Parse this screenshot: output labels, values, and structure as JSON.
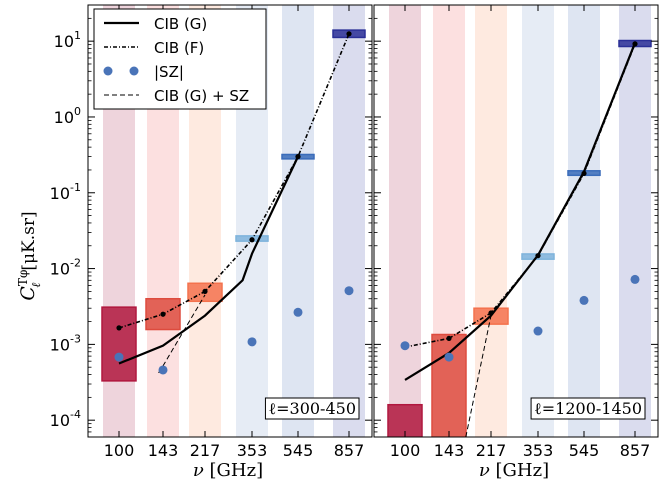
{
  "chart_data": {
    "type": "scatter",
    "ylabel_math": "C",
    "ylabel_sub": "ℓ",
    "ylabel_sup": "Tφ",
    "ylabel_unit": "[μK.sr]",
    "xlabel_var": "ν",
    "xlabel_unit": "[GHz]",
    "yscale": "log",
    "ylim": [
      6e-05,
      30
    ],
    "frequencies": [
      "100",
      "143",
      "217",
      "353",
      "545",
      "857"
    ],
    "band_colors": [
      "#e8c6d0",
      "#fbd6d6",
      "#fde3d6",
      "#dde6f2",
      "#d3dcee",
      "#cdd0e8"
    ],
    "box_colors": [
      "#b0173e",
      "#dd4b3e",
      "#f4724d",
      "#7fb4dc",
      "#3a6cba",
      "#2a2f96"
    ],
    "ytick_labels": [
      {
        "m": "10",
        "e": "-4"
      },
      {
        "m": "10",
        "e": "-3"
      },
      {
        "m": "10",
        "e": "-2"
      },
      {
        "m": "10",
        "e": "-1"
      },
      {
        "m": "10",
        "e": "0"
      },
      {
        "m": "10",
        "e": "1"
      }
    ],
    "legend": {
      "entries": [
        {
          "label": "CIB (G)",
          "style": "solid"
        },
        {
          "label": "CIB (F)",
          "style": "dashdot"
        },
        {
          "label": "|SZ|",
          "style": "dots"
        },
        {
          "label": "CIB (G) + SZ",
          "style": "dashed"
        }
      ],
      "position": "top-left"
    },
    "panels": [
      {
        "annotation": "ℓ=300-450",
        "boxes": [
          {
            "freq": "100",
            "low": 0.00033,
            "high": 0.0031
          },
          {
            "freq": "143",
            "low": 0.00157,
            "high": 0.004
          },
          {
            "freq": "217",
            "low": 0.0037,
            "high": 0.0064
          },
          {
            "freq": "353",
            "low": 0.023,
            "high": 0.027
          },
          {
            "freq": "545",
            "low": 0.28,
            "high": 0.32
          },
          {
            "freq": "857",
            "low": 11.2,
            "high": 14.0
          }
        ],
        "cib_g_dense": [
          {
            "freq": 0,
            "y": 0.00056
          },
          {
            "freq": 1,
            "y": 0.00096
          },
          {
            "freq": 2,
            "y": 0.0024
          },
          {
            "freq": 2.8,
            "y": 0.007
          },
          {
            "freq": 3,
            "y": 0.0157
          },
          {
            "freq": 4,
            "y": 0.3
          },
          {
            "freq": 5.02,
            "y": 16.0
          }
        ],
        "cib_f": [
          {
            "freq": "100",
            "y": 0.00165
          },
          {
            "freq": "143",
            "y": 0.0025
          },
          {
            "freq": "217",
            "y": 0.005
          },
          {
            "freq": "353",
            "y": 0.024
          },
          {
            "freq": "545",
            "y": 0.3
          },
          {
            "freq": "857",
            "y": 12.5
          }
        ],
        "sz": [
          {
            "freq": "100",
            "y": 0.00068
          },
          {
            "freq": "143",
            "y": 0.00046
          },
          {
            "freq": "217",
            "y": null
          },
          {
            "freq": "353",
            "y": 0.00108
          },
          {
            "freq": "545",
            "y": 0.00265
          },
          {
            "freq": "857",
            "y": 0.0051
          }
        ],
        "cib_g_sz": [
          {
            "freq": 0.9,
            "y": 0.00042
          },
          {
            "freq": 1,
            "y": 0.00052
          },
          {
            "freq": 2,
            "y": 0.0045
          }
        ]
      },
      {
        "annotation": "ℓ=1200-1450",
        "boxes": [
          {
            "freq": "100",
            "low": 1e-05,
            "high": 0.00016
          },
          {
            "freq": "143",
            "low": 1e-05,
            "high": 0.00135
          },
          {
            "freq": "217",
            "low": 0.00185,
            "high": 0.003
          },
          {
            "freq": "353",
            "low": 0.0133,
            "high": 0.0156
          },
          {
            "freq": "545",
            "low": 0.17,
            "high": 0.195
          },
          {
            "freq": "857",
            "low": 8.5,
            "high": 10.2
          }
        ],
        "cib_g_dense": [
          {
            "freq": 0,
            "y": 0.00034
          },
          {
            "freq": 1,
            "y": 0.00077
          },
          {
            "freq": 2,
            "y": 0.0024
          },
          {
            "freq": 3,
            "y": 0.015
          },
          {
            "freq": 4,
            "y": 0.19
          },
          {
            "freq": 5,
            "y": 9.5
          }
        ],
        "cib_f": [
          {
            "freq": "100",
            "y": 0.00092
          },
          {
            "freq": "143",
            "y": 0.0012
          },
          {
            "freq": "217",
            "y": 0.0026
          },
          {
            "freq": "353",
            "y": 0.0148
          },
          {
            "freq": "545",
            "y": 0.18
          },
          {
            "freq": "857",
            "y": 9.2
          }
        ],
        "sz": [
          {
            "freq": "100",
            "y": 0.00096
          },
          {
            "freq": "143",
            "y": 0.00068
          },
          {
            "freq": "217",
            "y": null
          },
          {
            "freq": "353",
            "y": 0.0015
          },
          {
            "freq": "545",
            "y": 0.0038
          },
          {
            "freq": "857",
            "y": 0.0072
          }
        ],
        "cib_g_sz": [
          {
            "freq": 1.4,
            "y": 6e-05
          },
          {
            "freq": 2,
            "y": 0.0024
          }
        ]
      }
    ]
  }
}
